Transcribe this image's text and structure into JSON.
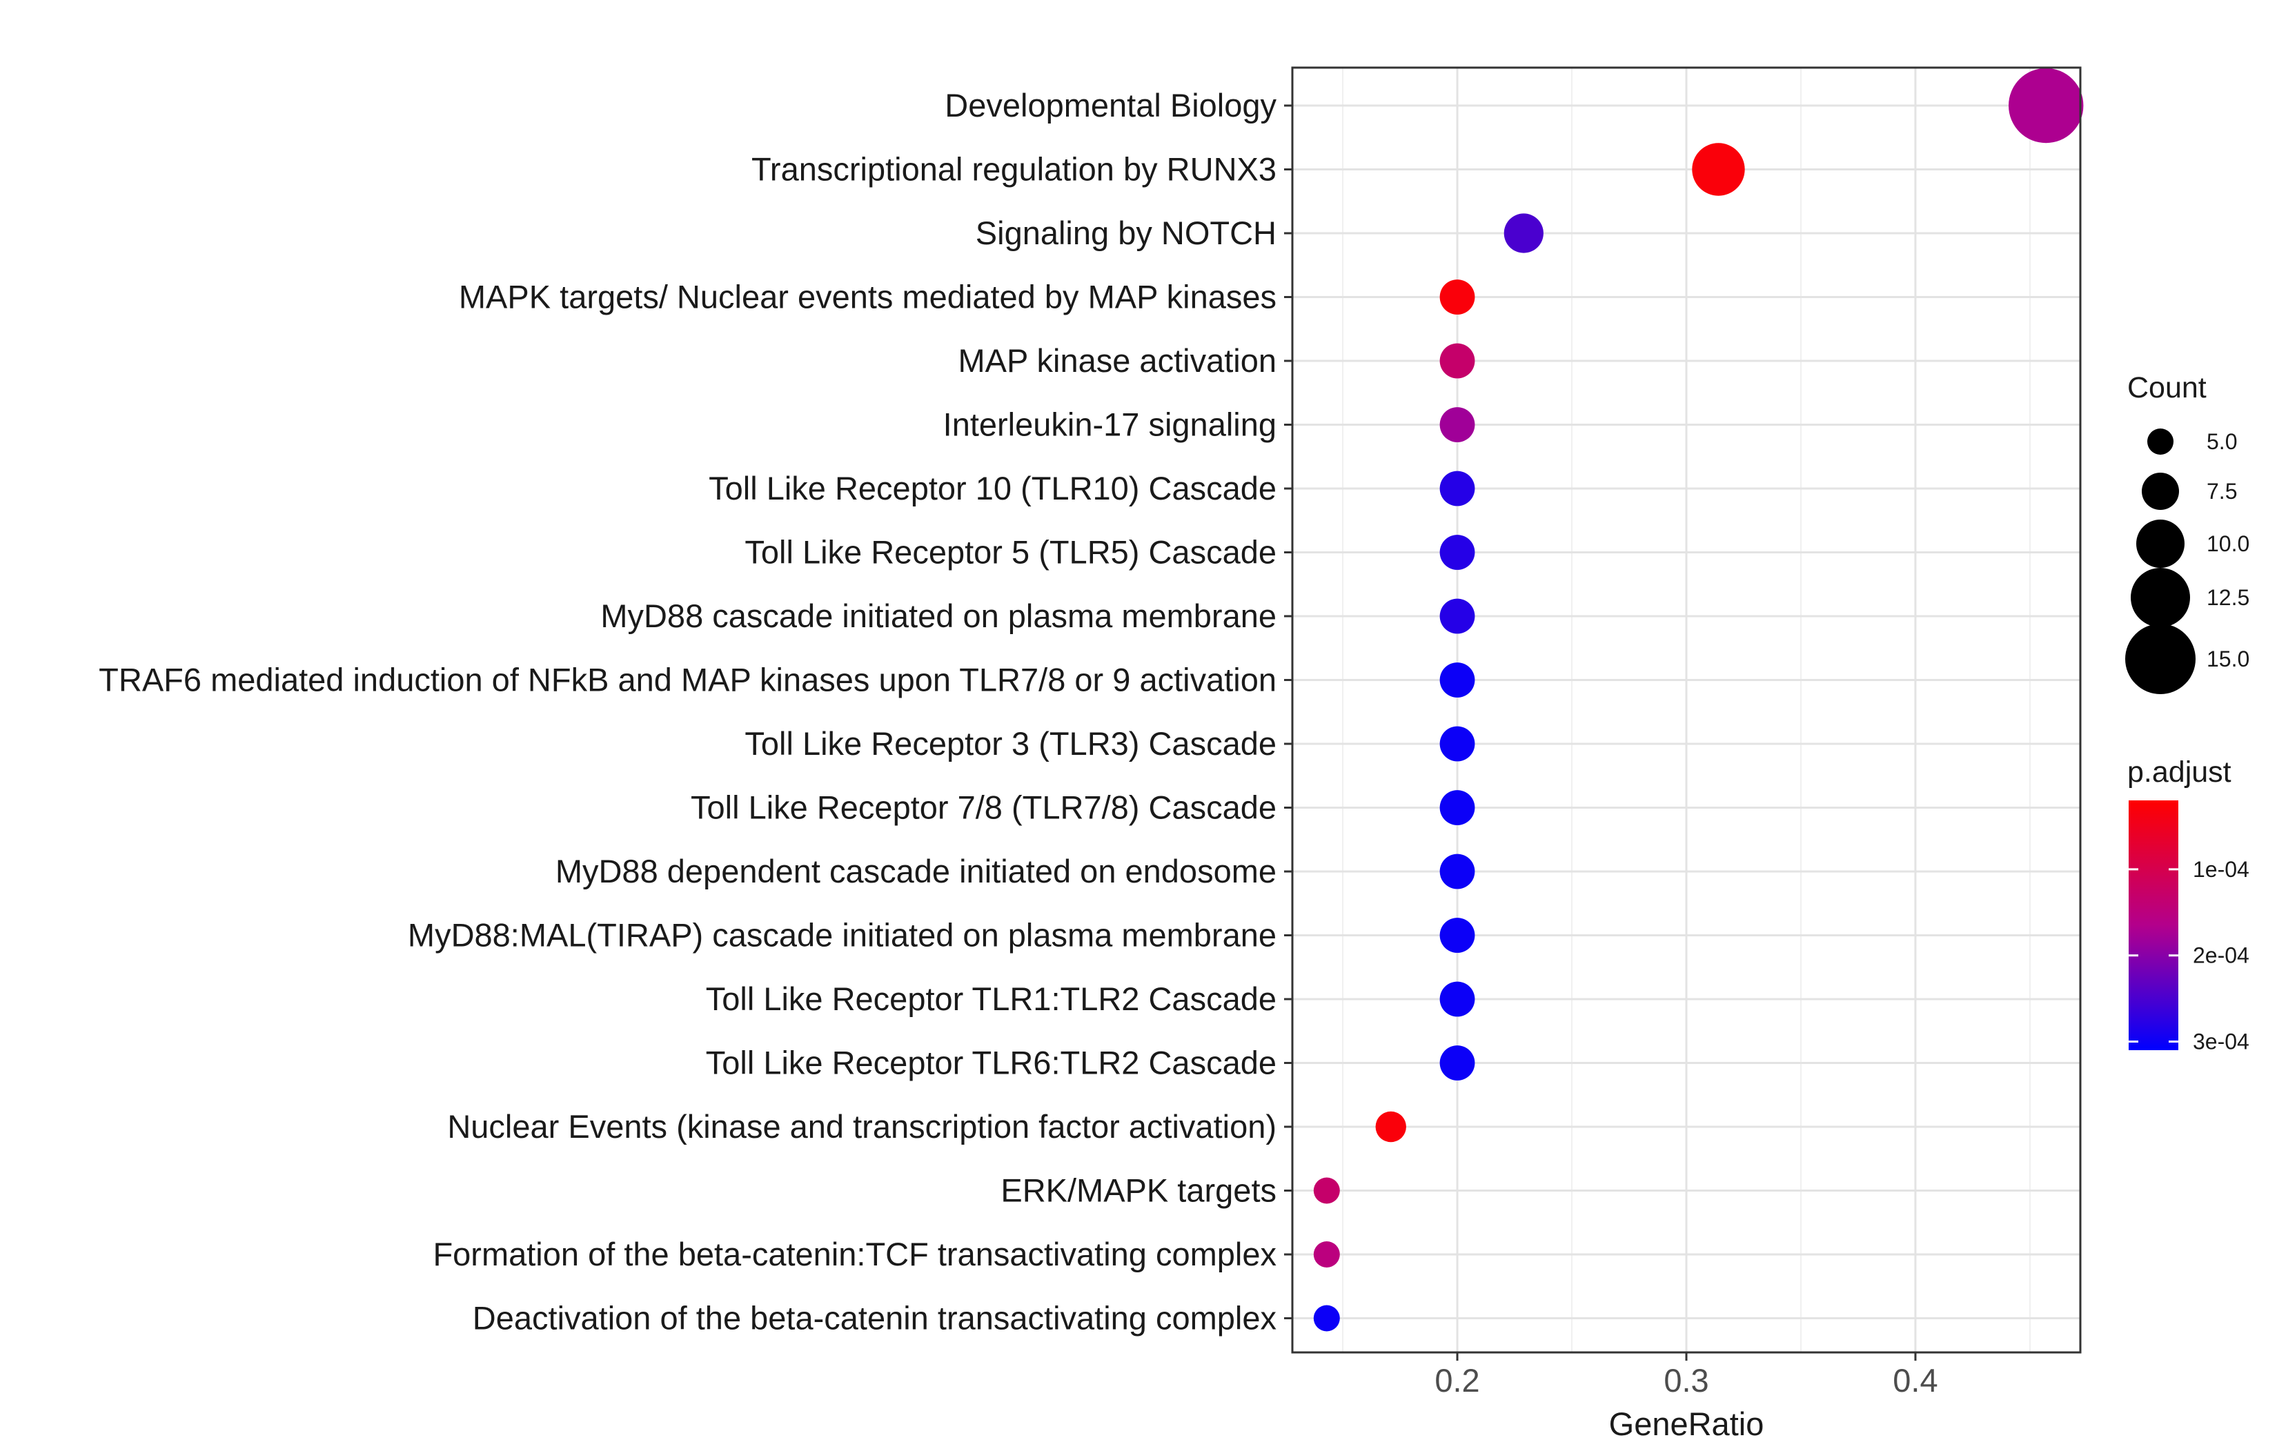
{
  "chart_data": {
    "type": "scatter",
    "title": "",
    "xlabel": "GeneRatio",
    "ylabel": "",
    "xlim": [
      0.128,
      0.472
    ],
    "x_ticks": [
      "0.2",
      "0.3",
      "0.4"
    ],
    "x_tick_values": [
      0.2,
      0.3,
      0.4
    ],
    "grid": true,
    "legend_position": "right",
    "categories": [
      "Developmental Biology",
      "Transcriptional regulation by RUNX3",
      "Signaling by NOTCH",
      "MAPK targets/ Nuclear events mediated by MAP kinases",
      "MAP kinase activation",
      "Interleukin-17 signaling",
      "Toll Like Receptor 10 (TLR10) Cascade",
      "Toll Like Receptor 5 (TLR5) Cascade",
      "MyD88 cascade initiated on plasma membrane",
      "TRAF6 mediated induction of NFkB and MAP kinases upon TLR7/8 or 9 activation",
      "Toll Like Receptor 3 (TLR3) Cascade",
      "Toll Like Receptor 7/8 (TLR7/8) Cascade",
      "MyD88 dependent cascade initiated on endosome",
      "MyD88:MAL(TIRAP) cascade initiated on plasma membrane",
      "Toll Like Receptor TLR1:TLR2 Cascade",
      "Toll Like Receptor TLR6:TLR2 Cascade",
      "Nuclear Events (kinase and transcription factor activation)",
      "ERK/MAPK targets",
      "Formation of the beta-catenin:TCF transactivating complex",
      "Deactivation of the beta-catenin transactivating complex"
    ],
    "points": [
      {
        "gene_ratio": 0.457,
        "count": 16,
        "p_adjust": 0.00017
      },
      {
        "gene_ratio": 0.314,
        "count": 11,
        "p_adjust": 3e-05
      },
      {
        "gene_ratio": 0.229,
        "count": 8,
        "p_adjust": 0.00025
      },
      {
        "gene_ratio": 0.2,
        "count": 7,
        "p_adjust": 3e-05
      },
      {
        "gene_ratio": 0.2,
        "count": 7,
        "p_adjust": 0.00013
      },
      {
        "gene_ratio": 0.2,
        "count": 7,
        "p_adjust": 0.00018
      },
      {
        "gene_ratio": 0.2,
        "count": 7,
        "p_adjust": 0.00028
      },
      {
        "gene_ratio": 0.2,
        "count": 7,
        "p_adjust": 0.00028
      },
      {
        "gene_ratio": 0.2,
        "count": 7,
        "p_adjust": 0.00028
      },
      {
        "gene_ratio": 0.2,
        "count": 7,
        "p_adjust": 0.0003
      },
      {
        "gene_ratio": 0.2,
        "count": 7,
        "p_adjust": 0.0003
      },
      {
        "gene_ratio": 0.2,
        "count": 7,
        "p_adjust": 0.0003
      },
      {
        "gene_ratio": 0.2,
        "count": 7,
        "p_adjust": 0.0003
      },
      {
        "gene_ratio": 0.2,
        "count": 7,
        "p_adjust": 0.0003
      },
      {
        "gene_ratio": 0.2,
        "count": 7,
        "p_adjust": 0.0003
      },
      {
        "gene_ratio": 0.2,
        "count": 7,
        "p_adjust": 0.0003
      },
      {
        "gene_ratio": 0.171,
        "count": 6,
        "p_adjust": 3e-05
      },
      {
        "gene_ratio": 0.143,
        "count": 5,
        "p_adjust": 0.00013
      },
      {
        "gene_ratio": 0.143,
        "count": 5,
        "p_adjust": 0.00015
      },
      {
        "gene_ratio": 0.143,
        "count": 5,
        "p_adjust": 0.0003
      }
    ],
    "size_legend": {
      "title": "Count",
      "labels": [
        "5.0",
        "7.5",
        "10.0",
        "12.5",
        "15.0"
      ],
      "values": [
        5,
        7.5,
        10,
        12.5,
        15
      ]
    },
    "color_legend": {
      "title": "p.adjust",
      "labels": [
        "1e-04",
        "2e-04",
        "3e-04"
      ],
      "values": [
        0.0001,
        0.0002,
        0.0003
      ],
      "range": [
        2e-05,
        0.00031
      ],
      "low_color": "#ff0000",
      "high_color": "#0000ff"
    }
  }
}
